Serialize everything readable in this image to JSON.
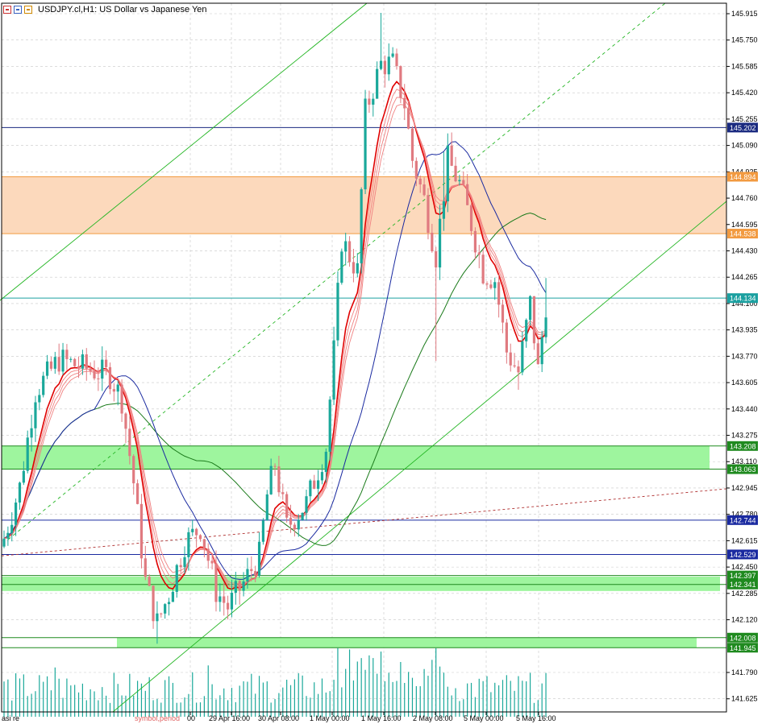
{
  "chart_data": {
    "type": "candlestick",
    "title": "USDJPY.cl,H1:  US Dollar vs Japanese Yen",
    "ylim": [
      141.5,
      146.0
    ],
    "y_ticks": [
      "145.915",
      "145.750",
      "145.585",
      "145.420",
      "145.255",
      "145.090",
      "144.925",
      "144.760",
      "144.595",
      "144.430",
      "144.265",
      "144.100",
      "143.935",
      "143.770",
      "143.605",
      "143.440",
      "143.275",
      "143.110",
      "142.945",
      "142.780",
      "142.615",
      "142.450",
      "142.285",
      "142.120",
      "141.790",
      "141.625"
    ],
    "x_labels": [
      "00",
      "29 Apr 16:00",
      "30 Apr 08:00",
      "1 May 00:00",
      "1 May 16:00",
      "2 May 08:00",
      "5 May 00:00",
      "5 May 16:00"
    ],
    "bottom_left_text": "asi re",
    "bottom_watermark": "symbol,period",
    "price_lines": [
      {
        "label": "145.202",
        "value": 145.202,
        "color": "#1a2a80"
      },
      {
        "label": "144.894",
        "value": 144.894,
        "color": "#f29a40"
      },
      {
        "label": "144.538",
        "value": 144.538,
        "color": "#f29a40"
      },
      {
        "label": "144.134",
        "value": 144.134,
        "color": "#1aa0a0"
      },
      {
        "label": "143.208",
        "value": 143.208,
        "color": "#1f8a1f"
      },
      {
        "label": "143.063",
        "value": 143.063,
        "color": "#1f8a1f"
      },
      {
        "label": "142.744",
        "value": 142.744,
        "color": "#1a2aa0"
      },
      {
        "label": "142.529",
        "value": 142.529,
        "color": "#1a2aa0"
      },
      {
        "label": "142.397",
        "value": 142.397,
        "color": "#1f8a1f"
      },
      {
        "label": "142.341",
        "value": 142.341,
        "color": "#1f8a1f"
      },
      {
        "label": "142.008",
        "value": 142.008,
        "color": "#1f8a1f"
      },
      {
        "label": "141.945",
        "value": 141.945,
        "color": "#1f8a1f"
      }
    ],
    "zones": [
      {
        "from": 144.538,
        "to": 144.894,
        "color": "#fcd9bc"
      },
      {
        "from": 143.063,
        "to": 143.208,
        "color": "#9ef59e"
      },
      {
        "from": 142.3,
        "to": 142.39,
        "color": "#9ef59e"
      },
      {
        "from": 141.945,
        "to": 142.008,
        "color": "#9ef59e"
      }
    ],
    "candle_color_up": "#1aa89a",
    "candle_color_down": "#e07a80",
    "ema_color": "#e00000",
    "ma_blue_color": "#1a2aa0",
    "ma_green_color": "#1a7a1a",
    "volume_color": "#1aa89a",
    "trend_color": "#22b522",
    "dotted_color": "#b03030"
  }
}
